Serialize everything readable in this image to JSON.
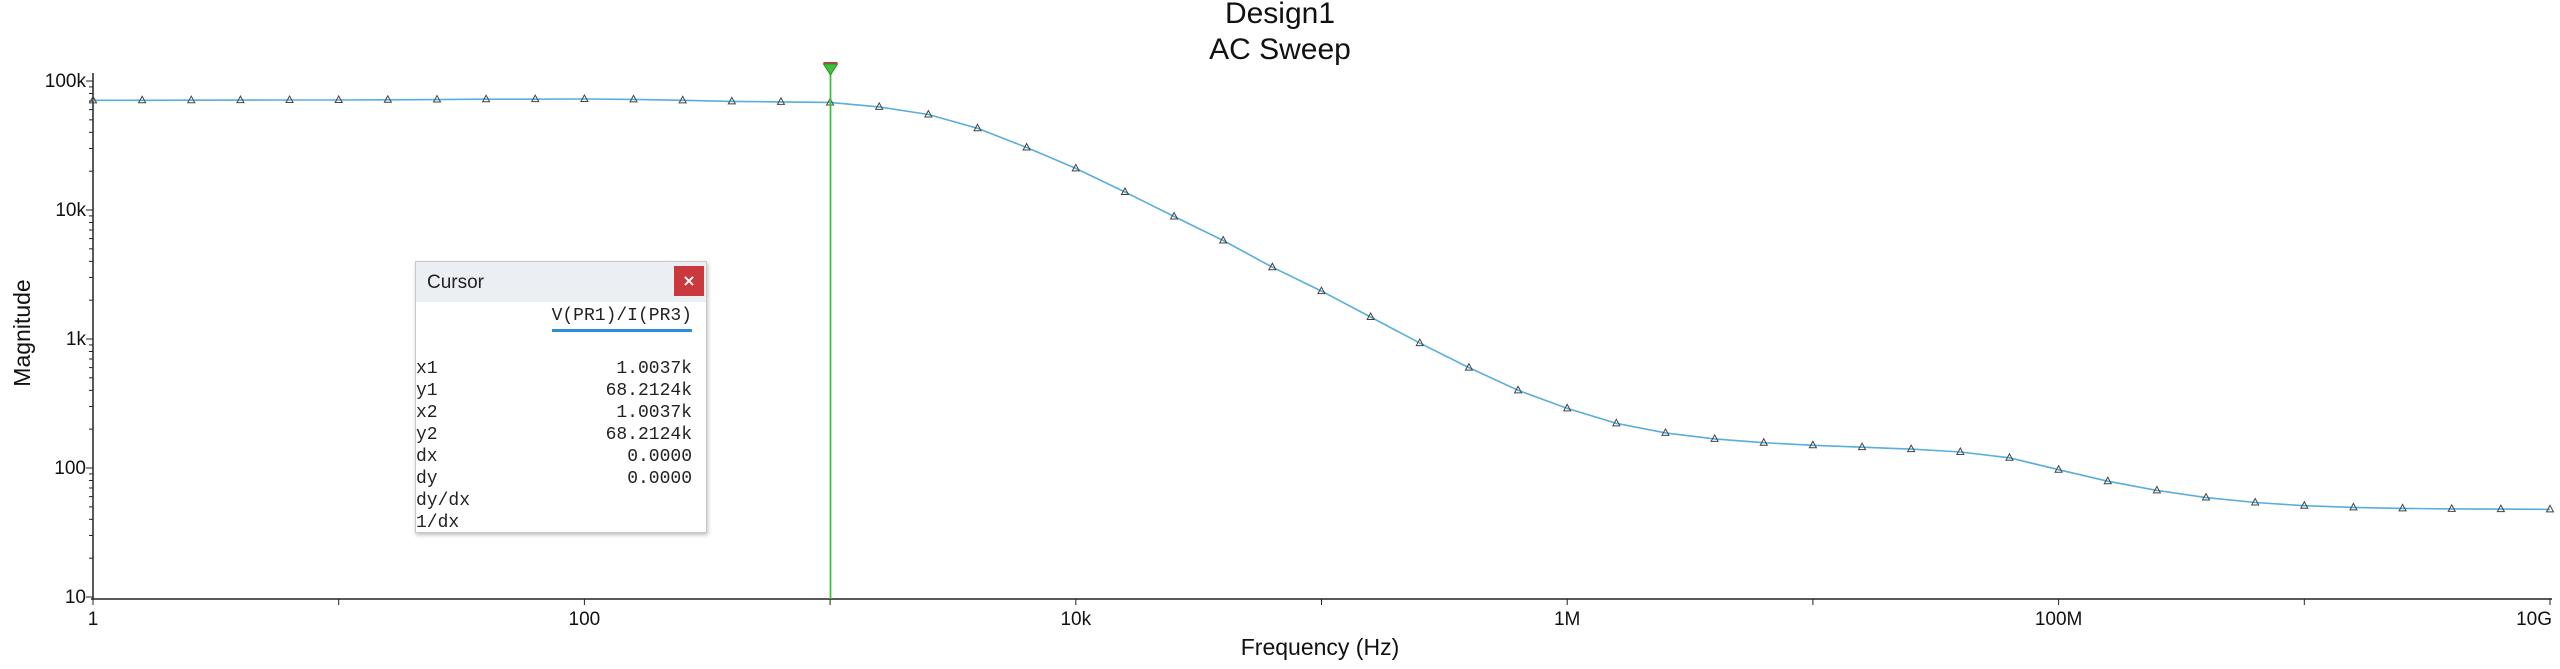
{
  "chart_data": {
    "type": "line",
    "title": "Design1",
    "subtitle": "AC Sweep",
    "xlabel": "Frequency (Hz)",
    "ylabel": "Magnitude",
    "xscale": "log",
    "yscale": "log",
    "xlim": [
      1,
      10000000000
    ],
    "ylim": [
      10,
      100000
    ],
    "grid": false,
    "x_ticks": [
      {
        "value": 1,
        "label": "1"
      },
      {
        "value": 100,
        "label": "100"
      },
      {
        "value": 10000,
        "label": "10k"
      },
      {
        "value": 1000000,
        "label": "1M"
      },
      {
        "value": 100000000,
        "label": "100M"
      },
      {
        "value": 10000000000,
        "label": "10G"
      }
    ],
    "y_ticks": [
      {
        "value": 100000,
        "label": "100k"
      },
      {
        "value": 10000,
        "label": "10k"
      },
      {
        "value": 1000,
        "label": "1k"
      },
      {
        "value": 100,
        "label": "100"
      },
      {
        "value": 10,
        "label": "10"
      }
    ],
    "series": [
      {
        "name": "V(PR1)/I(PR3)",
        "color": "#5aaedc",
        "marker": "triangle",
        "x": [
          1,
          1.585,
          2.512,
          3.981,
          6.31,
          10,
          15.85,
          25.12,
          39.81,
          63.1,
          100,
          158.5,
          251.2,
          398.1,
          631,
          1000,
          1585,
          2512,
          3981,
          6310,
          10000,
          15850,
          25120,
          39810,
          63100,
          100000,
          158500,
          251200,
          398100,
          631000,
          1000000,
          1585000,
          2512000,
          3981000,
          6310000,
          10000000,
          15850000,
          25120000,
          39810000,
          63100000,
          100000000,
          158500000,
          251200000,
          398100000,
          631000000,
          1000000000,
          1585000000,
          2512000000,
          3981000000,
          6310000000,
          10000000000
        ],
        "y": [
          70800,
          70900,
          71000,
          71100,
          71200,
          71300,
          71500,
          71800,
          72200,
          72300,
          72500,
          72000,
          70800,
          69500,
          68900,
          68200,
          63000,
          55000,
          43000,
          30500,
          21000,
          13800,
          8900,
          5800,
          3600,
          2350,
          1480,
          930,
          600,
          400,
          290,
          222,
          187,
          168,
          157,
          150,
          145,
          140,
          133,
          120,
          97,
          79,
          67,
          59,
          54,
          51,
          49.5,
          48.6,
          48.2,
          48,
          47.8
        ]
      }
    ],
    "cursor_marker": {
      "x": 1003.7,
      "color": "#3ec23e"
    }
  },
  "cursor_window": {
    "title": "Cursor",
    "close_label": "×",
    "trace": "V(PR1)/I(PR3)",
    "rows": [
      {
        "label": "x1",
        "value": "1.0037k"
      },
      {
        "label": "y1",
        "value": "68.2124k"
      },
      {
        "label": "x2",
        "value": "1.0037k"
      },
      {
        "label": "y2",
        "value": "68.2124k"
      },
      {
        "label": "dx",
        "value": "0.0000"
      },
      {
        "label": "dy",
        "value": "0.0000"
      },
      {
        "label": "dy/dx",
        "value": ""
      },
      {
        "label": "1/dx",
        "value": ""
      }
    ]
  }
}
